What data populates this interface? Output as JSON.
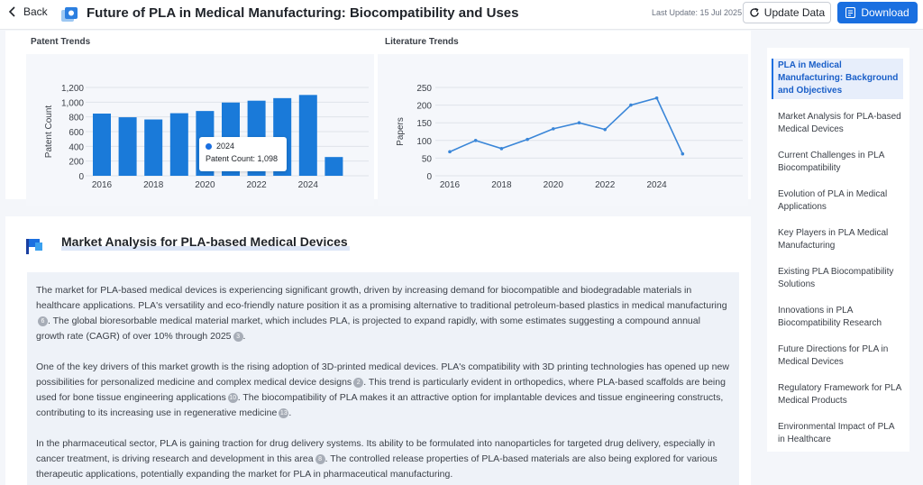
{
  "header": {
    "back_label": "Back",
    "title": "Future of PLA in Medical Manufacturing: Biocompatibility and Uses",
    "last_update": "Last Update: 15 Jul 2025",
    "update_label": "Update Data",
    "download_label": "Download"
  },
  "colors": {
    "accent": "#1a6fe0",
    "bar": "#1a7ad9",
    "line": "#3a86d8"
  },
  "chart_data": [
    {
      "type": "bar",
      "title": "Patent Trends",
      "ylabel": "Patent Count",
      "xlabel": "",
      "x": [
        2016,
        2017,
        2018,
        2019,
        2020,
        2021,
        2022,
        2023,
        2024,
        2025
      ],
      "values": [
        845,
        795,
        765,
        850,
        880,
        995,
        1020,
        1055,
        1098,
        255
      ],
      "ylim": [
        0,
        1200
      ],
      "yticks": [
        "0",
        "200",
        "400",
        "600",
        "800",
        "1,000",
        "1,200"
      ],
      "xticks": [
        "2016",
        "2018",
        "2020",
        "2022",
        "2024"
      ],
      "tooltip": {
        "year": "2024",
        "label": "Patent Count: 1,098"
      }
    },
    {
      "type": "line",
      "title": "Literature Trends",
      "ylabel": "Papers",
      "xlabel": "",
      "x": [
        2016,
        2017,
        2018,
        2019,
        2020,
        2021,
        2022,
        2023,
        2024,
        2025
      ],
      "values": [
        68,
        100,
        77,
        103,
        133,
        150,
        131,
        200,
        220,
        62
      ],
      "ylim": [
        0,
        250
      ],
      "yticks": [
        "0",
        "50",
        "100",
        "150",
        "200",
        "250"
      ],
      "xticks": [
        "2016",
        "2018",
        "2020",
        "2022",
        "2024"
      ]
    }
  ],
  "market": {
    "heading": "Market Analysis for PLA-based Medical Devices",
    "p1a": "The market for PLA-based medical devices is experiencing significant growth, driven by increasing demand for biocompatible and biodegradable materials in healthcare applications. PLA's versatility and eco-friendly nature position it as a promising alternative to traditional petroleum-based plastics in medical manufacturing",
    "p1b": ". The global bioresorbable medical material market, which includes PLA, is projected to expand rapidly, with some estimates suggesting a compound annual growth rate (CAGR) of over 10% through 2025",
    "p1c": ".",
    "p2a": "One of the key drivers of this market growth is the rising adoption of 3D-printed medical devices. PLA's compatibility with 3D printing technologies has opened up new possibilities for personalized medicine and complex medical device designs",
    "p2b": ". This trend is particularly evident in orthopedics, where PLA-based scaffolds are being used for bone tissue engineering applications",
    "p2c": ". The biocompatibility of PLA makes it an attractive option for implantable devices and tissue engineering constructs, contributing to its increasing use in regenerative medicine",
    "p2d": ".",
    "p3a": "In the pharmaceutical sector, PLA is gaining traction for drug delivery systems. Its ability to be formulated into nanoparticles for targeted drug delivery, especially in cancer treatment, is driving research and development in this area",
    "p3b": ". The controlled release properties of PLA-based materials are also being explored for various therapeutic applications, potentially expanding the market for PLA in pharmaceutical manufacturing.",
    "refs": [
      "6",
      "3",
      "2",
      "10",
      "13",
      "8"
    ]
  },
  "toc": {
    "items": [
      "PLA in Medical Manufacturing: Background and Objectives",
      "Market Analysis for PLA-based Medical Devices",
      "Current Challenges in PLA Biocompatibility",
      "Evolution of PLA in Medical Applications",
      "Key Players in PLA Medical Manufacturing",
      "Existing PLA Biocompatibility Solutions",
      "Innovations in PLA Biocompatibility Research",
      "Future Directions for PLA in Medical Devices",
      "Regulatory Framework for PLA Medical Products",
      "Environmental Impact of PLA in Healthcare"
    ]
  }
}
